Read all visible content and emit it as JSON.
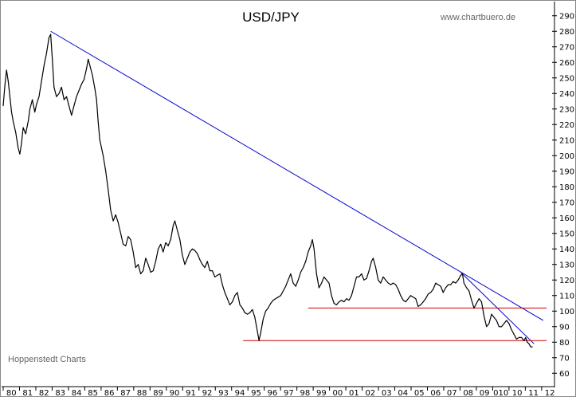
{
  "chart_data": {
    "type": "line",
    "title": "USD/JPY",
    "watermark": "www.chartbuero.de",
    "credit": "Hoppenstedt Charts",
    "xlabel": "",
    "ylabel": "",
    "x_tick_labels": [
      "80",
      "81",
      "82",
      "83",
      "84",
      "85",
      "86",
      "87",
      "88",
      "89",
      "90",
      "91",
      "92",
      "93",
      "94",
      "95",
      "96",
      "97",
      "98",
      "99",
      "00",
      "01",
      "02",
      "03",
      "04",
      "05",
      "06",
      "07",
      "08",
      "09",
      "010",
      "10",
      "11",
      "12"
    ],
    "y_ticks": [
      60,
      70,
      80,
      90,
      100,
      110,
      120,
      130,
      140,
      150,
      160,
      170,
      180,
      190,
      200,
      210,
      220,
      230,
      240,
      250,
      260,
      270,
      280,
      290
    ],
    "ylim": [
      55,
      295
    ],
    "xlim": [
      1980.0,
      2012.6
    ],
    "grid": false,
    "y_axis_side": "right",
    "colors": {
      "price": "#000000",
      "downtrend": "#0000cc",
      "support": "#cc0000"
    },
    "series": [
      {
        "values": [
          [
            1980.0,
            232
          ],
          [
            1980.1,
            245
          ],
          [
            1980.2,
            255
          ],
          [
            1980.3,
            248
          ],
          [
            1980.4,
            238
          ],
          [
            1980.5,
            228
          ],
          [
            1980.6,
            222
          ],
          [
            1980.75,
            215
          ],
          [
            1980.9,
            205
          ],
          [
            1981.0,
            201
          ],
          [
            1981.1,
            208
          ],
          [
            1981.2,
            218
          ],
          [
            1981.35,
            214
          ],
          [
            1981.5,
            222
          ],
          [
            1981.6,
            230
          ],
          [
            1981.75,
            236
          ],
          [
            1981.9,
            228
          ],
          [
            1982.0,
            233
          ],
          [
            1982.15,
            238
          ],
          [
            1982.3,
            248
          ],
          [
            1982.45,
            258
          ],
          [
            1982.6,
            266
          ],
          [
            1982.75,
            276
          ],
          [
            1982.85,
            278
          ],
          [
            1982.95,
            262
          ],
          [
            1983.05,
            244
          ],
          [
            1983.2,
            238
          ],
          [
            1983.35,
            240
          ],
          [
            1983.5,
            244
          ],
          [
            1983.65,
            236
          ],
          [
            1983.8,
            238
          ],
          [
            1983.95,
            232
          ],
          [
            1984.1,
            226
          ],
          [
            1984.25,
            232
          ],
          [
            1984.4,
            238
          ],
          [
            1984.55,
            242
          ],
          [
            1984.7,
            246
          ],
          [
            1984.85,
            249
          ],
          [
            1985.0,
            256
          ],
          [
            1985.1,
            262
          ],
          [
            1985.2,
            258
          ],
          [
            1985.35,
            252
          ],
          [
            1985.5,
            243
          ],
          [
            1985.6,
            236
          ],
          [
            1985.7,
            222
          ],
          [
            1985.8,
            210
          ],
          [
            1985.9,
            205
          ],
          [
            1986.0,
            200
          ],
          [
            1986.15,
            190
          ],
          [
            1986.3,
            178
          ],
          [
            1986.45,
            165
          ],
          [
            1986.6,
            158
          ],
          [
            1986.75,
            162
          ],
          [
            1986.9,
            157
          ],
          [
            1987.05,
            150
          ],
          [
            1987.2,
            143
          ],
          [
            1987.35,
            142
          ],
          [
            1987.5,
            148
          ],
          [
            1987.65,
            146
          ],
          [
            1987.8,
            138
          ],
          [
            1987.95,
            128
          ],
          [
            1988.1,
            130
          ],
          [
            1988.25,
            124
          ],
          [
            1988.4,
            126
          ],
          [
            1988.55,
            134
          ],
          [
            1988.7,
            130
          ],
          [
            1988.85,
            125
          ],
          [
            1989.0,
            126
          ],
          [
            1989.15,
            132
          ],
          [
            1989.3,
            140
          ],
          [
            1989.45,
            143
          ],
          [
            1989.6,
            138
          ],
          [
            1989.75,
            144
          ],
          [
            1989.9,
            142
          ],
          [
            1990.05,
            146
          ],
          [
            1990.2,
            155
          ],
          [
            1990.3,
            158
          ],
          [
            1990.45,
            152
          ],
          [
            1990.6,
            146
          ],
          [
            1990.75,
            136
          ],
          [
            1990.9,
            130
          ],
          [
            1991.05,
            134
          ],
          [
            1991.2,
            138
          ],
          [
            1991.35,
            140
          ],
          [
            1991.5,
            139
          ],
          [
            1991.65,
            137
          ],
          [
            1991.8,
            133
          ],
          [
            1991.95,
            130
          ],
          [
            1992.1,
            128
          ],
          [
            1992.25,
            132
          ],
          [
            1992.4,
            126
          ],
          [
            1992.55,
            126
          ],
          [
            1992.7,
            122
          ],
          [
            1992.85,
            123
          ],
          [
            1993.0,
            124
          ],
          [
            1993.15,
            117
          ],
          [
            1993.3,
            112
          ],
          [
            1993.45,
            108
          ],
          [
            1993.6,
            104
          ],
          [
            1993.75,
            106
          ],
          [
            1993.9,
            110
          ],
          [
            1994.05,
            112
          ],
          [
            1994.2,
            104
          ],
          [
            1994.35,
            102
          ],
          [
            1994.5,
            99
          ],
          [
            1994.65,
            98
          ],
          [
            1994.8,
            99
          ],
          [
            1994.95,
            101
          ],
          [
            1995.1,
            96
          ],
          [
            1995.2,
            90
          ],
          [
            1995.3,
            84
          ],
          [
            1995.35,
            81
          ],
          [
            1995.45,
            86
          ],
          [
            1995.6,
            95
          ],
          [
            1995.75,
            100
          ],
          [
            1995.9,
            102
          ],
          [
            1996.05,
            105
          ],
          [
            1996.2,
            107
          ],
          [
            1996.35,
            108
          ],
          [
            1996.5,
            109
          ],
          [
            1996.65,
            110
          ],
          [
            1996.8,
            113
          ],
          [
            1996.95,
            116
          ],
          [
            1997.1,
            120
          ],
          [
            1997.25,
            124
          ],
          [
            1997.4,
            118
          ],
          [
            1997.55,
            116
          ],
          [
            1997.7,
            120
          ],
          [
            1997.85,
            125
          ],
          [
            1998.0,
            128
          ],
          [
            1998.15,
            132
          ],
          [
            1998.3,
            138
          ],
          [
            1998.45,
            142
          ],
          [
            1998.55,
            146
          ],
          [
            1998.65,
            140
          ],
          [
            1998.8,
            124
          ],
          [
            1998.95,
            115
          ],
          [
            1999.1,
            118
          ],
          [
            1999.25,
            122
          ],
          [
            1999.4,
            120
          ],
          [
            1999.55,
            118
          ],
          [
            1999.7,
            110
          ],
          [
            1999.85,
            105
          ],
          [
            2000.0,
            104
          ],
          [
            2000.15,
            106
          ],
          [
            2000.3,
            107
          ],
          [
            2000.45,
            106
          ],
          [
            2000.6,
            108
          ],
          [
            2000.75,
            107
          ],
          [
            2000.9,
            110
          ],
          [
            2001.05,
            116
          ],
          [
            2001.2,
            122
          ],
          [
            2001.35,
            122
          ],
          [
            2001.5,
            124
          ],
          [
            2001.65,
            120
          ],
          [
            2001.8,
            121
          ],
          [
            2001.95,
            126
          ],
          [
            2002.1,
            132
          ],
          [
            2002.2,
            134
          ],
          [
            2002.35,
            128
          ],
          [
            2002.5,
            120
          ],
          [
            2002.65,
            118
          ],
          [
            2002.8,
            122
          ],
          [
            2002.95,
            120
          ],
          [
            2003.1,
            118
          ],
          [
            2003.25,
            117
          ],
          [
            2003.4,
            118
          ],
          [
            2003.55,
            117
          ],
          [
            2003.7,
            114
          ],
          [
            2003.85,
            110
          ],
          [
            2004.0,
            107
          ],
          [
            2004.15,
            106
          ],
          [
            2004.3,
            108
          ],
          [
            2004.45,
            110
          ],
          [
            2004.6,
            109
          ],
          [
            2004.75,
            108
          ],
          [
            2004.9,
            103
          ],
          [
            2005.05,
            104
          ],
          [
            2005.2,
            106
          ],
          [
            2005.35,
            108
          ],
          [
            2005.5,
            111
          ],
          [
            2005.65,
            112
          ],
          [
            2005.8,
            114
          ],
          [
            2005.95,
            118
          ],
          [
            2006.1,
            117
          ],
          [
            2006.25,
            116
          ],
          [
            2006.4,
            112
          ],
          [
            2006.55,
            115
          ],
          [
            2006.7,
            117
          ],
          [
            2006.85,
            117
          ],
          [
            2007.0,
            119
          ],
          [
            2007.15,
            118
          ],
          [
            2007.3,
            120
          ],
          [
            2007.45,
            123
          ],
          [
            2007.55,
            124
          ],
          [
            2007.65,
            118
          ],
          [
            2007.8,
            115
          ],
          [
            2007.95,
            113
          ],
          [
            2008.1,
            107
          ],
          [
            2008.25,
            102
          ],
          [
            2008.4,
            105
          ],
          [
            2008.55,
            108
          ],
          [
            2008.7,
            106
          ],
          [
            2008.85,
            97
          ],
          [
            2009.0,
            90
          ],
          [
            2009.15,
            92
          ],
          [
            2009.3,
            98
          ],
          [
            2009.45,
            96
          ],
          [
            2009.6,
            94
          ],
          [
            2009.75,
            90
          ],
          [
            2009.9,
            90
          ],
          [
            2010.05,
            92
          ],
          [
            2010.2,
            94
          ],
          [
            2010.35,
            92
          ],
          [
            2010.5,
            88
          ],
          [
            2010.65,
            85
          ],
          [
            2010.8,
            82
          ],
          [
            2010.95,
            83
          ],
          [
            2011.1,
            83
          ],
          [
            2011.25,
            81
          ],
          [
            2011.35,
            83
          ],
          [
            2011.45,
            80
          ],
          [
            2011.55,
            79
          ],
          [
            2011.65,
            77
          ],
          [
            2011.75,
            77
          ]
        ]
      }
    ],
    "trendlines": [
      {
        "kind": "downtrend",
        "from": [
          1982.85,
          280
        ],
        "to": [
          2012.4,
          94
        ]
      },
      {
        "kind": "downtrend",
        "from": [
          2007.45,
          125
        ],
        "to": [
          2011.85,
          79
        ]
      },
      {
        "kind": "support",
        "from": [
          1998.3,
          102
        ],
        "to": [
          2012.6,
          102
        ]
      },
      {
        "kind": "support",
        "from": [
          1994.4,
          81
        ],
        "to": [
          2012.6,
          81
        ]
      }
    ]
  }
}
